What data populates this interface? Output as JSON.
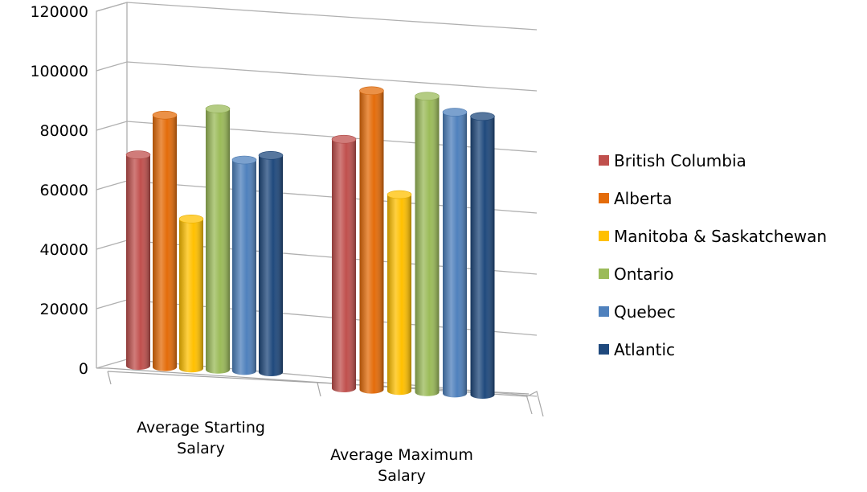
{
  "chart_data": {
    "type": "bar",
    "categories": [
      "Average Starting Salary",
      "Average Maximum Salary"
    ],
    "category_lines": [
      [
        "Average Starting",
        "Salary"
      ],
      [
        "Average Maximum",
        "Salary"
      ]
    ],
    "series": [
      {
        "name": "British Columbia",
        "color": "#C0504D",
        "values": [
          72000,
          85000
        ]
      },
      {
        "name": "Alberta",
        "color": "#E46C0A",
        "values": [
          86000,
          102000
        ]
      },
      {
        "name": "Manitoba & Saskatchewan",
        "color": "#FFC000",
        "values": [
          51000,
          67000
        ]
      },
      {
        "name": "Ontario",
        "color": "#9BBB59",
        "values": [
          89000,
          101000
        ]
      },
      {
        "name": "Quebec",
        "color": "#4F81BD",
        "values": [
          72000,
          96000
        ]
      },
      {
        "name": "Atlantic",
        "color": "#1F497D",
        "values": [
          74000,
          95000
        ]
      }
    ],
    "yticks": [
      0,
      20000,
      40000,
      60000,
      80000,
      100000,
      120000
    ],
    "ylim": [
      0,
      120000
    ],
    "grid": true,
    "legend_position": "right",
    "style": "3d-cylinder"
  }
}
